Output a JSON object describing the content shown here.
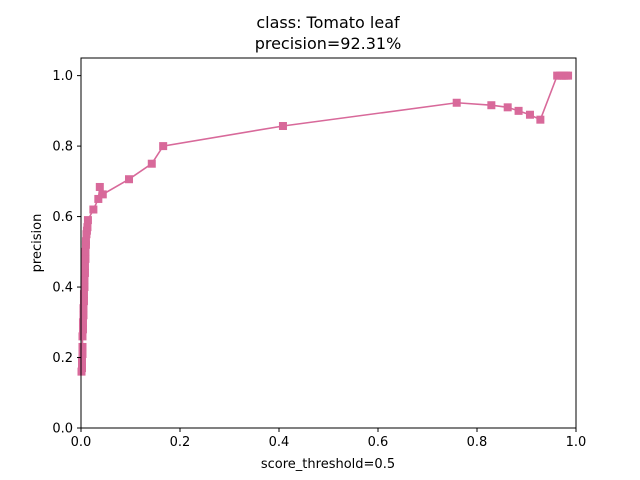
{
  "chart_data": {
    "type": "line",
    "title_line1": "class: Tomato leaf",
    "title_line2": "precision=92.31%",
    "xlabel": "score_threshold=0.5",
    "ylabel": "precision",
    "xlim": [
      0.0,
      1.0
    ],
    "ylim": [
      0.0,
      1.05
    ],
    "xticks": [
      0.0,
      0.2,
      0.4,
      0.6,
      0.8,
      1.0
    ],
    "xtick_labels": [
      "0.0",
      "0.2",
      "0.4",
      "0.6",
      "0.8",
      "1.0"
    ],
    "yticks": [
      0.0,
      0.2,
      0.4,
      0.6,
      0.8,
      1.0
    ],
    "ytick_labels": [
      "0.0",
      "0.2",
      "0.4",
      "0.6",
      "0.8",
      "1.0"
    ],
    "grid": false,
    "legend": false,
    "series": [
      {
        "color": "#d8699a",
        "marker": "square",
        "x": [
          0.001,
          0.002,
          0.002,
          0.003,
          0.003,
          0.003,
          0.004,
          0.004,
          0.005,
          0.005,
          0.006,
          0.006,
          0.007,
          0.007,
          0.008,
          0.008,
          0.009,
          0.009,
          0.01,
          0.01,
          0.011,
          0.012,
          0.013,
          0.014,
          0.025,
          0.035,
          0.038,
          0.044,
          0.097,
          0.143,
          0.166,
          0.408,
          0.759,
          0.829,
          0.862,
          0.884,
          0.907,
          0.928,
          0.962,
          0.968,
          0.972,
          0.976,
          0.98,
          0.984
        ],
        "y": [
          0.16,
          0.17,
          0.19,
          0.21,
          0.23,
          0.26,
          0.28,
          0.3,
          0.32,
          0.34,
          0.36,
          0.38,
          0.4,
          0.42,
          0.44,
          0.46,
          0.48,
          0.5,
          0.52,
          0.53,
          0.55,
          0.56,
          0.57,
          0.59,
          0.62,
          0.65,
          0.684,
          0.663,
          0.706,
          0.75,
          0.8,
          0.857,
          0.923,
          0.916,
          0.91,
          0.9,
          0.889,
          0.875,
          1.0,
          1.0,
          1.0,
          1.0,
          1.0,
          1.0
        ]
      }
    ]
  }
}
